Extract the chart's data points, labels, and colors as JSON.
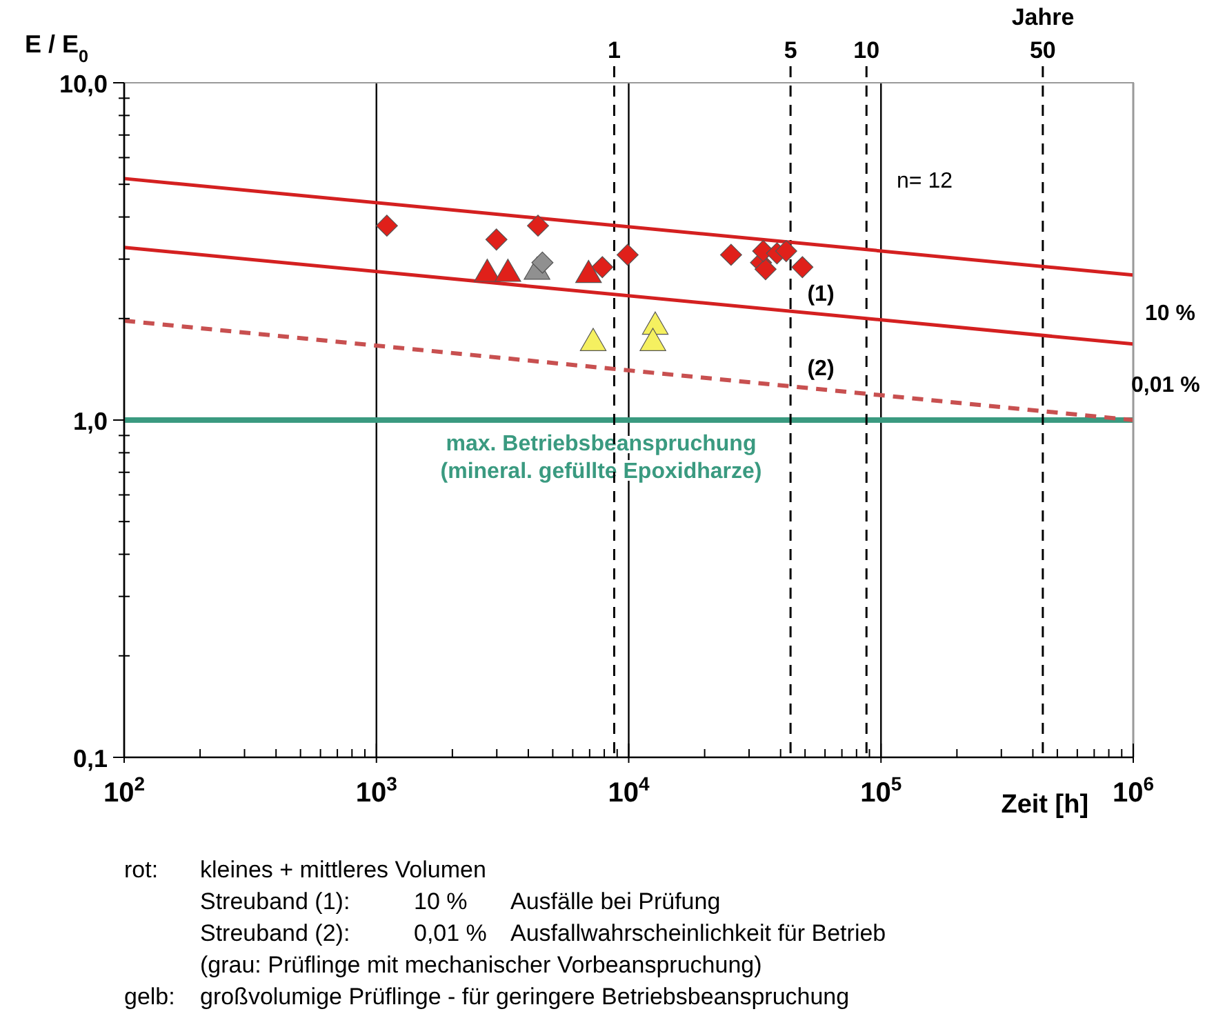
{
  "chart_data": {
    "type": "scatter",
    "ylabel": "E / E$_{0}$",
    "xlabel": "Zeit [h]",
    "log": "xy",
    "grid": "x",
    "xlim": [
      100,
      1000000
    ],
    "ylim": [
      0.1,
      10
    ],
    "xticks": [
      {
        "value": 100,
        "label": "10$^{2}$"
      },
      {
        "value": 1000,
        "label": "10$^{3}$"
      },
      {
        "value": 10000,
        "label": "10$^{4}$"
      },
      {
        "value": 100000,
        "label": "10$^{5}$"
      },
      {
        "value": 1000000,
        "label": "10$^{6}$"
      }
    ],
    "yticks": [
      {
        "value": 0.1,
        "label": "0,1"
      },
      {
        "value": 1,
        "label": "1,0"
      },
      {
        "value": 10,
        "label": "10,0"
      }
    ],
    "series": [
      {
        "type": "line",
        "color": "#d42020",
        "x": [
          100,
          1000000
        ],
        "values": [
          5.2,
          2.69
        ],
        "marker": "none",
        "line_style": "solid"
      },
      {
        "type": "line",
        "color": "#d42020",
        "x": [
          100,
          1000000
        ],
        "values": [
          3.25,
          1.68
        ],
        "marker": "none",
        "line_style": "solid"
      },
      {
        "type": "line",
        "color": "#c85050",
        "x": [
          100,
          1000000
        ],
        "values": [
          1.97,
          1.0
        ],
        "marker": "none",
        "line_style": "dashed"
      },
      {
        "color": "#e0201a",
        "marker": "diamond",
        "x": [
          1100,
          2990,
          4370,
          7860,
          9900,
          25450,
          33450,
          34870,
          34130,
          38700,
          42100,
          48800
        ],
        "values": [
          3.77,
          3.43,
          3.77,
          2.84,
          3.09,
          3.09,
          2.93,
          2.8,
          3.17,
          3.12,
          3.17,
          2.84
        ]
      },
      {
        "color": "#e0201a",
        "marker": "triangle",
        "x": [
          2750,
          3320,
          6930
        ],
        "values": [
          2.71,
          2.71,
          2.69
        ]
      },
      {
        "color": "#909090",
        "marker": "triangle",
        "x": [
          4330
        ],
        "values": [
          2.75
        ]
      },
      {
        "color": "#909090",
        "marker": "diamond",
        "x": [
          4550
        ],
        "values": [
          2.93
        ]
      },
      {
        "color": "#f5f060",
        "marker": "triangle",
        "x": [
          7230,
          12740,
          12470
        ],
        "values": [
          1.69,
          1.89,
          1.69
        ]
      }
    ],
    "ref_lines": [
      {
        "axis": "y",
        "value": 1,
        "color": "#3a9a80",
        "line_style": "solid",
        "label": "max. Betriebsbeanspruchung\n(mineral. gefüllte Epoxidharze)"
      },
      {
        "axis": "x",
        "value": 8760,
        "color": "#000000",
        "line_style": "dashed"
      },
      {
        "axis": "x",
        "value": 43800,
        "color": "#000000",
        "line_style": "dashed"
      },
      {
        "axis": "x",
        "value": 87600,
        "color": "#000000",
        "line_style": "dashed"
      },
      {
        "axis": "x",
        "value": 438000,
        "color": "#000000",
        "line_style": "dashed"
      }
    ],
    "annotations": [
      "n= 12",
      "(1)",
      "(2)",
      "10 %",
      "0,01 %",
      "Jahre",
      "1",
      "5",
      "10",
      "50",
      "rot:\tkleines + mittleres Volumen",
      "\tStreuband (1):\t10 %\tAusfälle bei Prüfung",
      "\tStreuband (2):\t0,01 %\tAusfallwahrscheinlichkeit für Betrieb",
      "\t(grau: Prüflinge mit mechanischer Vorbeanspruchung)",
      "gelb:\tgroßvolumige Prüflinge  - für geringere Betriebsbeanspruchung"
    ]
  }
}
